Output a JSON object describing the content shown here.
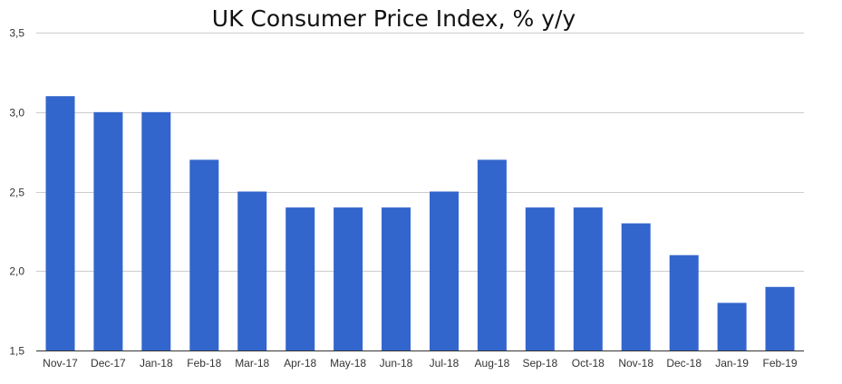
{
  "chart_data": {
    "type": "bar",
    "title": "UK Consumer Price Index, % y/y",
    "categories": [
      "Nov-17",
      "Dec-17",
      "Jan-18",
      "Feb-18",
      "Mar-18",
      "Apr-18",
      "May-18",
      "Jun-18",
      "Jul-18",
      "Aug-18",
      "Sep-18",
      "Oct-18",
      "Nov-18",
      "Dec-18",
      "Jan-19",
      "Feb-19"
    ],
    "values": [
      3.1,
      3.0,
      3.0,
      2.7,
      2.5,
      2.4,
      2.4,
      2.4,
      2.5,
      2.7,
      2.4,
      2.4,
      2.3,
      2.1,
      1.8,
      1.9
    ],
    "ylim": [
      1.5,
      3.5
    ],
    "yticks": [
      1.5,
      2.0,
      2.5,
      3.0,
      3.5
    ],
    "ytick_labels": [
      "1,5",
      "2,0",
      "2,5",
      "3,0",
      "3,5"
    ],
    "grid": true,
    "bar_color": "#3366cc",
    "grid_color": "#cccccc"
  }
}
